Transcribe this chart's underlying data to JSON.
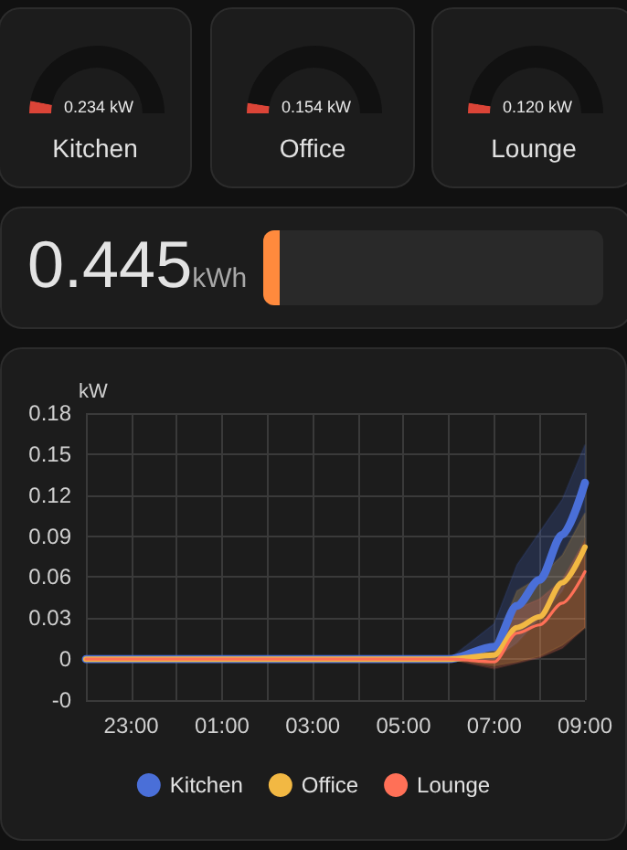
{
  "chart_data": [
    {
      "type": "donut",
      "title": "Kitchen",
      "categories": [
        null,
        null
      ],
      "values": [
        6,
        94
      ],
      "colors": [
        "#db4437",
        "#111111"
      ],
      "annotations": [
        "0.234 kW"
      ]
    },
    {
      "type": "donut",
      "title": "Office",
      "categories": [
        null,
        null
      ],
      "values": [
        5,
        95
      ],
      "colors": [
        "#db4437",
        "#111111"
      ],
      "annotations": [
        "0.154 kW"
      ]
    },
    {
      "type": "donut",
      "title": "Lounge",
      "categories": [
        null,
        null
      ],
      "values": [
        5,
        95
      ],
      "colors": [
        "#db4437",
        "#111111"
      ],
      "annotations": [
        "0.120 kW"
      ]
    },
    {
      "type": "other",
      "annotations": [
        "0.445",
        "kWh"
      ]
    },
    {
      "type": "line",
      "ylabel": "kW",
      "grid": true,
      "legend": "bottom",
      "marker": "none",
      "line_style": "solid",
      "x": [
        "--01-01T22:00",
        "--01-02T06:00",
        "--01-02T07:00",
        "--01-02T07:30",
        "--01-02T08:00",
        "--01-02T08:30",
        "--01-02T09:00"
      ],
      "xlim": [
        "--01-01T22:00",
        "--01-02T09:00"
      ],
      "xticks": [
        {
          "value": "--01-01T22:00",
          "label": null
        },
        {
          "value": "--01-01T23:00",
          "label": "23:00"
        },
        {
          "value": "--01-02T00:00",
          "label": null
        },
        {
          "value": "--01-02T01:00",
          "label": "01:00"
        },
        {
          "value": "--01-02T02:00",
          "label": null
        },
        {
          "value": "--01-02T03:00",
          "label": "03:00"
        },
        {
          "value": "--01-02T04:00",
          "label": null
        },
        {
          "value": "--01-02T05:00",
          "label": "05:00"
        },
        {
          "value": "--01-02T06:00",
          "label": null
        },
        {
          "value": "--01-02T07:00",
          "label": "07:00"
        },
        {
          "value": "--01-02T08:00",
          "label": null
        },
        {
          "value": "--01-02T09:00",
          "label": "09:00"
        }
      ],
      "ylim": [
        -0.03,
        0.18
      ],
      "yticks": [
        {
          "value": -0.03,
          "label": "-0"
        },
        {
          "value": 0,
          "label": "0"
        },
        0.03,
        0.06,
        0.09,
        0.12,
        0.15,
        0.18
      ],
      "series": [
        {
          "name": "Kitchen",
          "color": "#4a6fd8",
          "values": [
            0,
            0,
            0.009,
            0.039,
            0.058,
            0.091,
            0.129
          ],
          "lower": [
            0,
            0,
            0,
            0.012,
            0.03,
            0.05,
            0.089
          ],
          "upper": [
            0,
            0,
            0.026,
            0.069,
            0.093,
            0.117,
            0.157
          ]
        },
        {
          "name": "Office",
          "color": "#f2b843",
          "values": [
            0,
            0,
            0.003,
            0.023,
            0.031,
            0.056,
            0.082
          ],
          "lower": [
            0,
            0,
            -0.005,
            -0.002,
            0.002,
            0.01,
            0.023
          ],
          "upper": [
            0,
            0,
            0.01,
            0.05,
            0.06,
            0.076,
            0.107
          ]
        },
        {
          "name": "Lounge",
          "color": "#ff7057",
          "values": [
            0,
            0,
            -0.002,
            0.019,
            0.025,
            0.041,
            0.064
          ],
          "lower": [
            0,
            0,
            -0.007,
            -0.003,
            0.001,
            0.008,
            0.023
          ],
          "upper": [
            0,
            0,
            0.004,
            0.037,
            0.044,
            0.058,
            0.087
          ]
        }
      ]
    }
  ]
}
